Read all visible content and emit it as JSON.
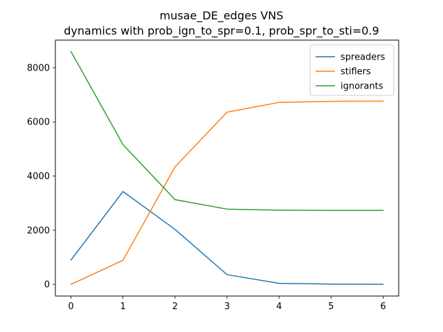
{
  "chart_data": {
    "type": "line",
    "title": "musae_DE_edges VNS\ndynamics with prob_ign_to_spr=0.1, prob_spr_to_sti=0.9",
    "title_lines": [
      "musae_DE_edges VNS",
      "dynamics with prob_ign_to_spr=0.1, prob_spr_to_sti=0.9"
    ],
    "xlabel": "",
    "ylabel": "",
    "x": [
      0,
      1,
      2,
      3,
      4,
      5,
      6
    ],
    "xlim": [
      -0.3,
      6.3
    ],
    "ylim": [
      -430,
      9020
    ],
    "xticks": [
      0,
      1,
      2,
      3,
      4,
      5,
      6
    ],
    "yticks": [
      0,
      2000,
      4000,
      6000,
      8000
    ],
    "xtick_labels": [
      "0",
      "1",
      "2",
      "3",
      "4",
      "5",
      "6"
    ],
    "ytick_labels": [
      "0",
      "2000",
      "4000",
      "6000",
      "8000"
    ],
    "grid": false,
    "legend_position": "top-right",
    "series": [
      {
        "name": "spreaders",
        "color": "#1f77b4",
        "values": [
          900,
          3430,
          2030,
          360,
          40,
          10,
          5
        ]
      },
      {
        "name": "stiflers",
        "color": "#ff7f0e",
        "values": [
          0,
          890,
          4340,
          6360,
          6720,
          6760,
          6765
        ]
      },
      {
        "name": "ignorants",
        "color": "#2ca02c",
        "values": [
          8600,
          5160,
          3130,
          2780,
          2740,
          2732,
          2730
        ]
      }
    ]
  }
}
